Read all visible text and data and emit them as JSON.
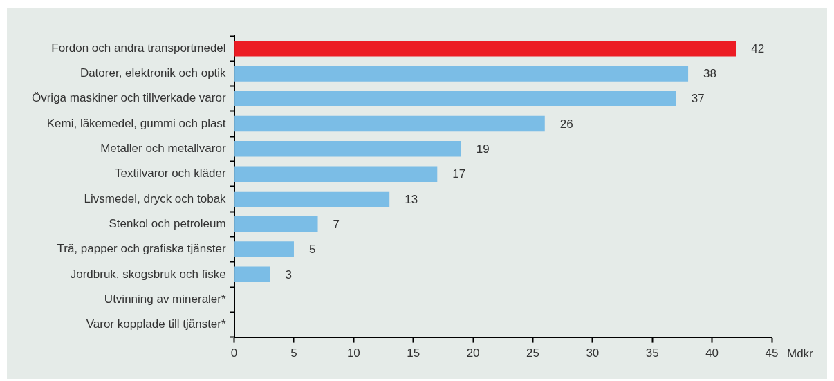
{
  "chart_data": {
    "type": "bar",
    "orientation": "horizontal",
    "xlabel": "Mdkr",
    "categories": [
      "Fordon och andra transportmedel",
      "Datorer, elektronik och optik",
      "Övriga maskiner och tillverkade varor",
      "Kemi, läkemedel, gummi och plast",
      "Metaller och metallvaror",
      "Textilvaror och kläder",
      "Livsmedel, dryck och tobak",
      "Stenkol och petroleum",
      "Trä, papper och grafiska tjänster",
      "Jordbruk, skogsbruk och fiske",
      "Utvinning av mineraler*",
      "Varor kopplade till tjänster*"
    ],
    "values": [
      42,
      38,
      37,
      26,
      19,
      17,
      13,
      7,
      5,
      3,
      null,
      null
    ],
    "colors": [
      "#ec1c24",
      "#7bbde6",
      "#7bbde6",
      "#7bbde6",
      "#7bbde6",
      "#7bbde6",
      "#7bbde6",
      "#7bbde6",
      "#7bbde6",
      "#7bbde6",
      "#7bbde6",
      "#7bbde6"
    ],
    "xlim": [
      0,
      45
    ],
    "xticks": [
      0,
      5,
      10,
      15,
      20,
      25,
      30,
      35,
      40,
      45
    ],
    "data_labels": true,
    "grid": false,
    "legend": false
  }
}
